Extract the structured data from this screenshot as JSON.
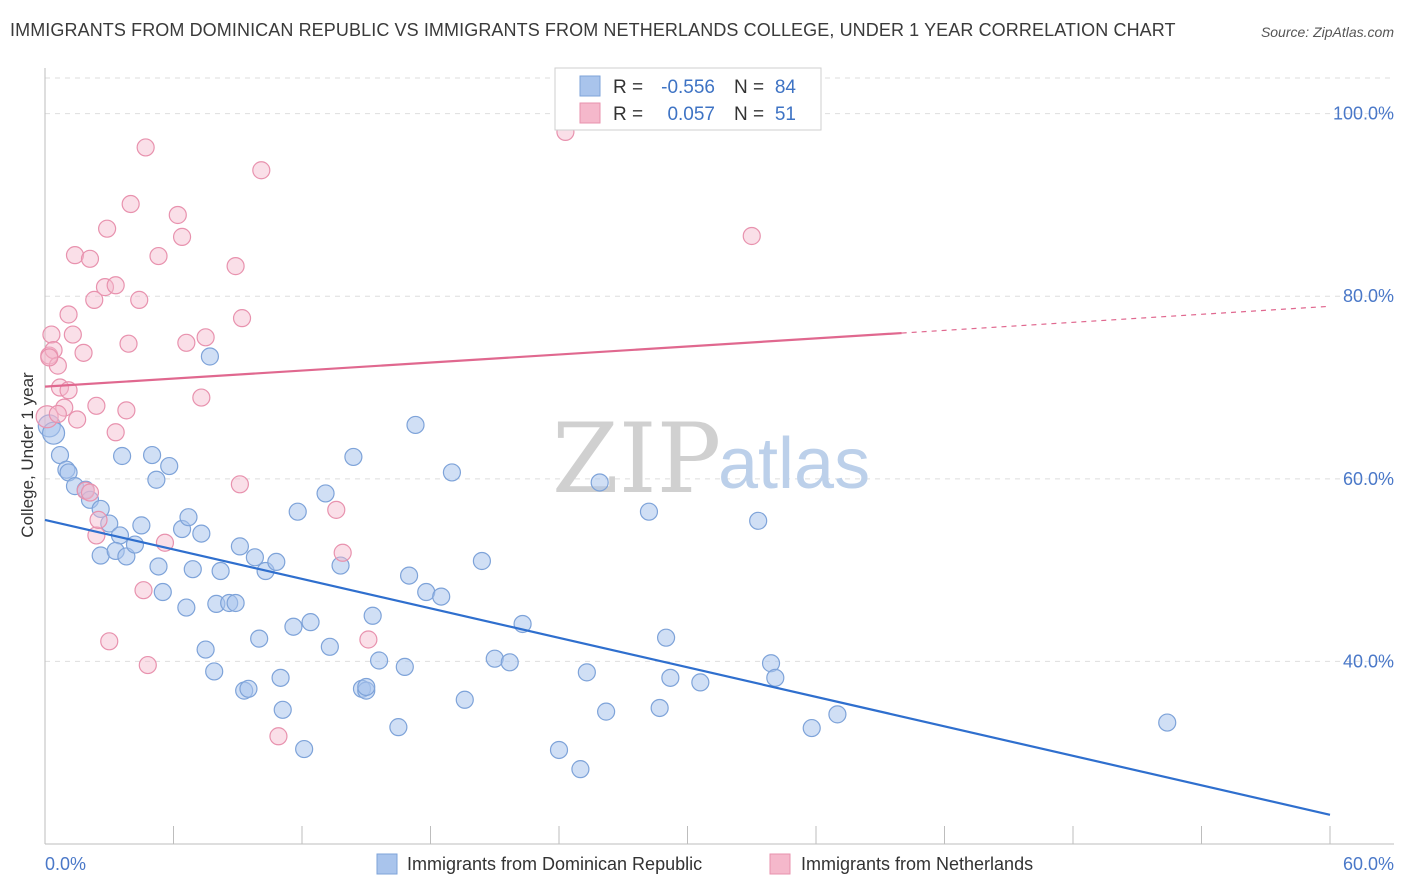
{
  "header": {
    "title": "IMMIGRANTS FROM DOMINICAN REPUBLIC VS IMMIGRANTS FROM NETHERLANDS COLLEGE, UNDER 1 YEAR CORRELATION CHART",
    "source": "Source: ZipAtlas.com"
  },
  "watermark": {
    "zip": "ZIP",
    "atlas": "atlas"
  },
  "stats": {
    "r_label": "R =",
    "n_label": "N =",
    "rows": [
      {
        "r": "-0.556",
        "n": "84",
        "color": "#a9c4ec"
      },
      {
        "r": "0.057",
        "n": "51",
        "color": "#f5b8cb"
      }
    ]
  },
  "colors": {
    "blue_fill": "#a9c4ec",
    "blue_stroke": "#7ea3d9",
    "blue_line": "#2f6fce",
    "pink_fill": "#f5b8cb",
    "pink_stroke": "#e892ae",
    "pink_line": "#e0688f",
    "tick": "#4a78c8",
    "grid": "#dedede"
  },
  "chart_data": {
    "type": "scatter",
    "title": "IMMIGRANTS FROM DOMINICAN REPUBLIC VS IMMIGRANTS FROM NETHERLANDS COLLEGE, UNDER 1 YEAR CORRELATION CHART",
    "xlabel": "",
    "ylabel": "College, Under 1 year",
    "xlim": [
      0,
      60
    ],
    "ylim": [
      20,
      105
    ],
    "x_tick_labels": [
      "0.0%",
      "60.0%"
    ],
    "y_ticks": [
      {
        "value": 40,
        "label": "40.0%"
      },
      {
        "value": 60,
        "label": "60.0%"
      },
      {
        "value": 80,
        "label": "80.0%"
      },
      {
        "value": 100,
        "label": "100.0%"
      }
    ],
    "grid": true,
    "legend_position": "bottom",
    "series": [
      {
        "name": "Immigrants from Dominican Republic",
        "color": "#a9c4ec",
        "trend": {
          "x": [
            0,
            60
          ],
          "y": [
            55.5,
            23.2
          ],
          "solid_to": 60
        },
        "points": [
          [
            0.2,
            65.8
          ],
          [
            0.4,
            65.0
          ],
          [
            0.7,
            62.6
          ],
          [
            1.0,
            61.0
          ],
          [
            1.1,
            60.7
          ],
          [
            1.4,
            59.2
          ],
          [
            1.9,
            58.8
          ],
          [
            2.1,
            57.7
          ],
          [
            2.6,
            56.7
          ],
          [
            3.0,
            55.1
          ],
          [
            3.5,
            53.8
          ],
          [
            2.6,
            51.6
          ],
          [
            3.3,
            52.1
          ],
          [
            3.8,
            51.5
          ],
          [
            3.6,
            62.5
          ],
          [
            4.5,
            54.9
          ],
          [
            4.2,
            52.8
          ],
          [
            5.0,
            62.6
          ],
          [
            5.2,
            59.9
          ],
          [
            5.8,
            61.4
          ],
          [
            5.3,
            50.4
          ],
          [
            5.5,
            47.6
          ],
          [
            6.4,
            54.5
          ],
          [
            6.7,
            55.8
          ],
          [
            6.6,
            45.9
          ],
          [
            6.9,
            50.1
          ],
          [
            7.3,
            54.0
          ],
          [
            7.5,
            41.3
          ],
          [
            7.7,
            73.4
          ],
          [
            7.9,
            38.9
          ],
          [
            8.0,
            46.3
          ],
          [
            8.2,
            49.9
          ],
          [
            8.6,
            46.4
          ],
          [
            8.9,
            46.4
          ],
          [
            9.1,
            52.6
          ],
          [
            9.3,
            36.8
          ],
          [
            9.5,
            37.0
          ],
          [
            9.8,
            51.4
          ],
          [
            10.0,
            42.5
          ],
          [
            10.3,
            49.9
          ],
          [
            10.8,
            50.9
          ],
          [
            11.0,
            38.2
          ],
          [
            11.1,
            34.7
          ],
          [
            11.6,
            43.8
          ],
          [
            11.8,
            56.4
          ],
          [
            12.1,
            30.4
          ],
          [
            12.4,
            44.3
          ],
          [
            13.1,
            58.4
          ],
          [
            13.3,
            41.6
          ],
          [
            13.8,
            50.5
          ],
          [
            14.4,
            62.4
          ],
          [
            14.8,
            37.0
          ],
          [
            15.0,
            36.8
          ],
          [
            15.3,
            45.0
          ],
          [
            15.6,
            40.1
          ],
          [
            16.5,
            32.8
          ],
          [
            16.8,
            39.4
          ],
          [
            17.0,
            49.4
          ],
          [
            17.3,
            65.9
          ],
          [
            17.8,
            47.6
          ],
          [
            18.5,
            47.1
          ],
          [
            19.0,
            60.7
          ],
          [
            19.6,
            35.8
          ],
          [
            20.4,
            51.0
          ],
          [
            21.0,
            40.3
          ],
          [
            21.7,
            39.9
          ],
          [
            22.3,
            44.1
          ],
          [
            24.0,
            30.3
          ],
          [
            25.0,
            28.2
          ],
          [
            25.3,
            38.8
          ],
          [
            25.9,
            59.6
          ],
          [
            26.2,
            34.5
          ],
          [
            28.2,
            56.4
          ],
          [
            28.7,
            34.9
          ],
          [
            29.0,
            42.6
          ],
          [
            29.2,
            38.2
          ],
          [
            30.6,
            37.7
          ],
          [
            33.3,
            55.4
          ],
          [
            33.9,
            39.8
          ],
          [
            34.1,
            38.2
          ],
          [
            35.8,
            32.7
          ],
          [
            37.0,
            34.2
          ],
          [
            52.4,
            33.3
          ],
          [
            15.0,
            37.2
          ]
        ]
      },
      {
        "name": "Immigrants from Netherlands",
        "color": "#f5b8cb",
        "trend": {
          "x": [
            0,
            60
          ],
          "y": [
            70.1,
            78.9
          ],
          "solid_to": 40
        },
        "points": [
          [
            0.1,
            66.8
          ],
          [
            0.2,
            73.5
          ],
          [
            0.3,
            75.8
          ],
          [
            0.4,
            74.1
          ],
          [
            0.6,
            72.4
          ],
          [
            0.7,
            70.0
          ],
          [
            0.9,
            67.8
          ],
          [
            1.1,
            69.7
          ],
          [
            1.1,
            78.0
          ],
          [
            1.3,
            75.8
          ],
          [
            1.5,
            66.5
          ],
          [
            1.4,
            84.5
          ],
          [
            1.8,
            73.8
          ],
          [
            1.9,
            58.7
          ],
          [
            2.1,
            58.5
          ],
          [
            2.1,
            84.1
          ],
          [
            2.3,
            79.6
          ],
          [
            2.4,
            68.0
          ],
          [
            2.4,
            53.8
          ],
          [
            2.5,
            55.5
          ],
          [
            2.8,
            81.0
          ],
          [
            2.9,
            87.4
          ],
          [
            3.0,
            42.2
          ],
          [
            3.3,
            81.2
          ],
          [
            3.3,
            65.1
          ],
          [
            3.8,
            67.5
          ],
          [
            3.9,
            74.8
          ],
          [
            4.0,
            90.1
          ],
          [
            4.4,
            79.6
          ],
          [
            4.6,
            47.8
          ],
          [
            4.7,
            96.3
          ],
          [
            4.8,
            39.6
          ],
          [
            5.3,
            84.4
          ],
          [
            5.6,
            53.0
          ],
          [
            6.2,
            88.9
          ],
          [
            6.4,
            86.5
          ],
          [
            6.6,
            74.9
          ],
          [
            7.3,
            68.9
          ],
          [
            7.5,
            75.5
          ],
          [
            8.9,
            83.3
          ],
          [
            9.1,
            59.4
          ],
          [
            9.2,
            77.6
          ],
          [
            10.1,
            93.8
          ],
          [
            10.9,
            31.8
          ],
          [
            13.6,
            56.6
          ],
          [
            13.9,
            51.9
          ],
          [
            15.1,
            42.4
          ],
          [
            24.3,
            98.0
          ],
          [
            33.0,
            86.6
          ],
          [
            0.2,
            73.3
          ],
          [
            0.6,
            67.1
          ]
        ]
      }
    ]
  }
}
